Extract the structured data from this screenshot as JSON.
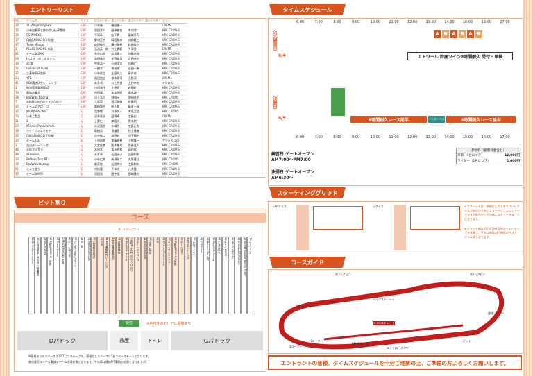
{
  "headers": {
    "entry": "エントリーリスト",
    "timetable": "タイムスケジュール",
    "pit": "ピット割り",
    "grid": "スターティンググリッド",
    "course": "コースガイド"
  },
  "entry_cols": [
    "No.",
    "チーム名",
    "クラス",
    "第1ライダー",
    "第2ライダー",
    "第3ライダー",
    "第4ライダー",
    "マシン"
  ],
  "entries": [
    [
      "25",
      "ZL R-Ngmsroyakai",
      "EXP",
      "小林勝",
      "磯田慶一",
      "",
      "",
      "CRCM4"
    ],
    [
      "15",
      "小林自動車と仲の良い仕事関係",
      "EXP",
      "池田洋人",
      "田中敏也",
      "木川渉",
      "",
      "HRC CRCM-S"
    ],
    [
      "29",
      "CS-WORKS",
      "EXP",
      "平岡寿一",
      "山下貴一",
      "栗嶋恵司",
      "",
      "HRC CRCM-S"
    ],
    [
      "17",
      "C部品NING10(1号機)",
      "EXP",
      "野村正大",
      "岡田和彦",
      "川和賢三",
      "",
      "HRC CRCM-S"
    ],
    [
      "27",
      "Team Moaoo",
      "EXP",
      "森田敏也",
      "藤井輝樹",
      "松岡俊人",
      "",
      "HRC CRCM-S"
    ],
    [
      "2",
      "PEACE RACING 新潟",
      "EXP",
      "石渕英一郎",
      "井上貴範",
      "平澤秀",
      "",
      "CRCM5"
    ],
    [
      "81",
      "チームSEZAKI",
      "EXP",
      "長谷川朗",
      "岩坂雅人",
      "加藤悠稀",
      "",
      "HRC CRCM-S"
    ],
    [
      "69",
      "Jへよす工房とスタッフ",
      "EXP",
      "和田雄大",
      "平野雄悟",
      "吉田卓也",
      "",
      "HRC CRCM-S"
    ],
    [
      "14",
      "S二郎",
      "EXP",
      "中島浩一",
      "石田洋介",
      "山崎仁",
      "",
      "HRC CRCM-S"
    ],
    [
      "71",
      "FRESH-UP.CLUB",
      "EXP",
      "一樹本",
      "桐島翔",
      "宮田一樹",
      "",
      "HRC CRCM-S"
    ],
    [
      "32",
      "三菱岐阜研究所",
      "EXP",
      "小林秀之",
      "上田光太",
      "藤井俊",
      "",
      "HRC CRCM-S"
    ],
    [
      "23",
      "YTR",
      "EXP",
      "福田信之",
      "根本祐司",
      "小野清",
      "",
      "CRCM4"
    ],
    [
      "41",
      "KSR通信研究レーシング",
      "EXP",
      "本多卓",
      "川上秀樹",
      "上村幸志",
      "",
      "アクロス"
    ],
    [
      "3",
      "物流管理電源NSG",
      "EXP",
      "小田憲作",
      "上原昭",
      "森田彰",
      "",
      "HRC CRCM-S"
    ],
    [
      "74",
      "高雄商業会",
      "EXP",
      "村田隆",
      "永本秀昭",
      "高木謙",
      "",
      "HRC CRCM-S"
    ],
    [
      "36",
      "EagWNs Racing",
      "EXP",
      "山上浩人",
      "野田元",
      "池田秀子",
      "",
      "HRC CRCM5"
    ],
    [
      "7",
      "浜松Hふみ竹のクラブひのワ",
      "EXP",
      "八坂賢",
      "田臣勝敏",
      "佐藤明",
      "",
      "HRC CRCM-S"
    ],
    [
      "25",
      "チームエアロ・ロ",
      "EXP",
      "森崎誠也",
      "田上和",
      "藤本一茂",
      "",
      "HRC CRCM-S"
    ],
    [
      "12",
      "JOCKJSRACING",
      "EJ",
      "吉野敬",
      "川原久人",
      "木島之浩",
      "",
      "HRC CRCM5"
    ],
    [
      "53",
      "小長ご製品",
      "EJ",
      "沢井泰治",
      "田賀卓",
      "工藤岩",
      "",
      "CRCM4"
    ],
    [
      "51",
      "S",
      "EJ",
      "上野仁",
      "津田光",
      "荒木航",
      "",
      "HRC CRCM-S"
    ],
    [
      "63",
      "KFSmin/Pun/Vsnmai",
      "EJ",
      "赤沢雅彦",
      "小嶋秀",
      "工藤正樹",
      "",
      "HRC CRCM-S"
    ],
    [
      "16",
      "ハイナブシエキモア",
      "EJ",
      "高橋渉",
      "泉義男",
      "村上雅敏",
      "",
      "HRC CRCM-S"
    ],
    [
      "22",
      "C部品NING10(2号機)",
      "EJ",
      "吉中紘二",
      "前田純",
      "山下瑛治",
      "",
      "HRC CRCM-S"
    ],
    [
      "20",
      "チームRED",
      "EJ",
      "上田昌樹",
      "加藤直樹",
      "上野雄一",
      "",
      "アクシス-125"
    ],
    [
      "3",
      "西日本レーシング",
      "EJ",
      "大倉佳孝",
      "阪本郁代",
      "佐藤嘉人",
      "",
      "HRC CRCM-S"
    ],
    [
      "46",
      "水仙マミキラ",
      "EJ",
      "水田学",
      "喜多秀和",
      "高村晃",
      "",
      "HRC CRCM-S"
    ],
    [
      "49",
      "YTFBolon",
      "EJ",
      "高木卓",
      "山田英子",
      "山田利彰",
      "",
      "HRC CRCM-S"
    ],
    [
      "13",
      "Bottom Turn RT",
      "EJ",
      "小杉仁朗",
      "新潟光二",
      "大原雅江",
      "",
      "HRC CRCM5"
    ],
    [
      "39",
      "EagWNS Racing",
      "EJ",
      "栗原敏",
      "山田幸夫",
      "工藤和久",
      "",
      "HRC CRCM5"
    ],
    [
      "61",
      "じゅり盛り",
      "EJ",
      "村松隆",
      "平本光",
      "八木隆",
      "",
      "HRC CRCM-S"
    ],
    [
      "35",
      "チームWARS",
      "EJ",
      "羽田浩",
      "田中悟",
      "田崎雅也",
      "",
      "HRC CRCM-S"
    ],
    [
      "45",
      "WILD WEASEL",
      "EJ",
      "土野慶",
      "町田孝",
      "本木慶一",
      "",
      "アクロス"
    ],
    [
      "31",
      "CHINNAGS PGROM",
      "EJ",
      "坂田清",
      "小松雄一",
      "谷口隆",
      "",
      "CRCM-S"
    ],
    [
      "18",
      "Honda Suzuka Racing Team",
      "EJ",
      "佐藤祐介",
      "石川拓",
      "上田稔",
      "",
      "CRCM-S"
    ],
    [
      "70",
      "ルーニーズ",
      "EJ",
      "小森陸",
      "五十嵐実",
      "藤田修",
      "",
      "CRCM-S"
    ]
  ],
  "timetable": {
    "times": [
      "6:00",
      "7:00",
      "8:00",
      "9:00",
      "10:00",
      "11:00",
      "12:00",
      "13:00",
      "14:00",
      "15:00",
      "16:00",
      "17:00"
    ],
    "day1": "公式練習日",
    "day2": "決勝日",
    "day1_date": "8/4",
    "day2_date": "8/5",
    "practice_labels": [
      "A",
      "B",
      "A",
      "B",
      "A",
      "B"
    ],
    "event": "エトワール 鈴鹿ツイン8時間耐久 受付・車検",
    "race_first": "8時間耐久レース前半",
    "interval": "インターバル",
    "race_second": "8時間耐久レース後半",
    "side_labels": [
      "場内受付",
      "場内受付・車検",
      "ブリーフィング",
      "決勝",
      "表彰式"
    ]
  },
  "gates": {
    "practice_label": "練習日 ゲートオープン",
    "practice_time": "AM7:00〜PM7:00",
    "race_label": "決勝日 ゲートオープン",
    "race_time": "AM6:30〜"
  },
  "fees": {
    "title": "参加料（観客料金含む）",
    "rows": [
      [
        "車両（1台につき）",
        "12,000円"
      ],
      [
        "ライダー（1名につき）",
        "1,000円"
      ]
    ]
  },
  "grid": {
    "header": "EXPクラス",
    "header2": "EJクラス"
  },
  "pit": {
    "course": "コース",
    "pit_road": "ピットロード",
    "receipt": "受付",
    "note": "※色付きのエリアは屋根あり",
    "paddock_d": "Dパドック",
    "paddock_g": "Gパドック",
    "bathroom": "トイレ",
    "restroom": "救護",
    "footnote1": "※屋根ありのスペースは1PITにつきテーブル、屋根なしスペースは1台スペースチームとなります。",
    "footnote2": "貸出番号スペース事前のテーム出場対象となります。その際は連絡PIT事務の拡張となりますが。"
  },
  "course_labels": [
    "第1ヘアピン",
    "第2ヘアピン",
    "バックストレート",
    "S字コーナー",
    "メインストレート",
    "1コーナー",
    "2コーナー",
    "ピット",
    "COURSE IN",
    "コントロールタワー",
    "最終コーナー"
  ],
  "closing": "エントラントの皆様、タイムスケジュールを十分ご理解の上、ご準備の方よろしくお願いします。",
  "grid_notes": [
    "★スターットは、原則としてエキスパートクラスが前列から先にスタートし、エンジョイクラスが後列からその後にスタートすることになります。",
    "★グリッド順は4日'前日練習時のベストラップを基準し、それ以降は前日練習のベストタイム順となります。"
  ]
}
